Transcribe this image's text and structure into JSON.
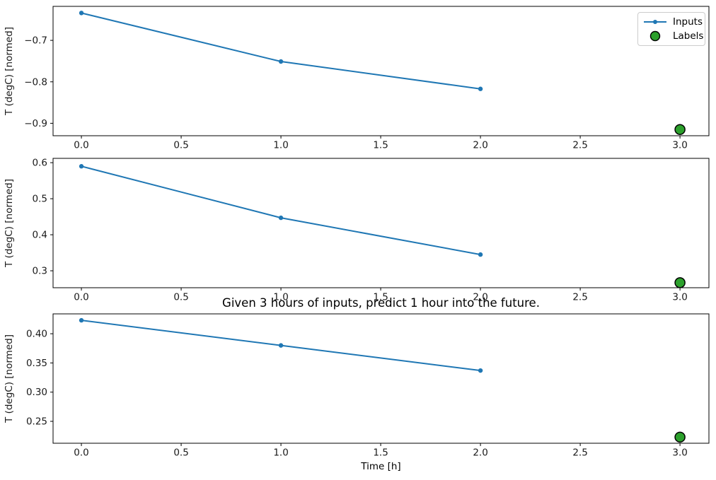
{
  "figure": {
    "title": "Given 3 hours of inputs, predict 1 hour into the future.",
    "xlabel": "Time [h]",
    "background": "#ffffff"
  },
  "colors": {
    "inputs_line": "#1f77b4",
    "labels_fill": "#2ca02c",
    "labels_edge": "#000000",
    "axes_edge": "#000000",
    "text": "#1a1a1a"
  },
  "legend": {
    "items": [
      {
        "label": "Inputs",
        "kind": "line",
        "color": "#1f77b4"
      },
      {
        "label": "Labels",
        "kind": "circle",
        "color": "#2ca02c",
        "edge": "#000000"
      }
    ]
  },
  "chart_data": [
    {
      "type": "line",
      "title": "",
      "ylabel": "T (degC) [normed]",
      "xlim": [
        -0.142,
        3.145
      ],
      "ylim": [
        -0.93,
        -0.618
      ],
      "grid": false,
      "legend_position": "upper right",
      "xticks": [
        {
          "v": 0.0,
          "label": "0.0"
        },
        {
          "v": 0.5,
          "label": "0.5"
        },
        {
          "v": 1.0,
          "label": "1.0"
        },
        {
          "v": 1.5,
          "label": "1.5"
        },
        {
          "v": 2.0,
          "label": "2.0"
        },
        {
          "v": 2.5,
          "label": "2.5"
        },
        {
          "v": 3.0,
          "label": "3.0"
        }
      ],
      "yticks": [
        {
          "v": -0.7,
          "label": "−0.7"
        },
        {
          "v": -0.8,
          "label": "−0.8"
        },
        {
          "v": -0.9,
          "label": "−0.9"
        }
      ],
      "series": [
        {
          "name": "Inputs",
          "kind": "line",
          "color": "#1f77b4",
          "x": [
            0,
            1,
            2
          ],
          "y": [
            -0.634,
            -0.751,
            -0.817
          ]
        },
        {
          "name": "Labels",
          "kind": "scatter",
          "color": "#2ca02c",
          "edge": "#000000",
          "x": [
            3
          ],
          "y": [
            -0.915
          ]
        }
      ]
    },
    {
      "type": "line",
      "title": "",
      "ylabel": "T (degC) [normed]",
      "xlim": [
        -0.142,
        3.145
      ],
      "ylim": [
        0.253,
        0.612
      ],
      "grid": false,
      "legend_position": "none",
      "xticks": [
        {
          "v": 0.0,
          "label": "0.0"
        },
        {
          "v": 0.5,
          "label": "0.5"
        },
        {
          "v": 1.0,
          "label": "1.0"
        },
        {
          "v": 1.5,
          "label": "1.5"
        },
        {
          "v": 2.0,
          "label": "2.0"
        },
        {
          "v": 2.5,
          "label": "2.5"
        },
        {
          "v": 3.0,
          "label": "3.0"
        }
      ],
      "yticks": [
        {
          "v": 0.6,
          "label": "0.6"
        },
        {
          "v": 0.5,
          "label": "0.5"
        },
        {
          "v": 0.4,
          "label": "0.4"
        },
        {
          "v": 0.3,
          "label": "0.3"
        }
      ],
      "series": [
        {
          "name": "Inputs",
          "kind": "line",
          "color": "#1f77b4",
          "x": [
            0,
            1,
            2
          ],
          "y": [
            0.59,
            0.447,
            0.345
          ]
        },
        {
          "name": "Labels",
          "kind": "scatter",
          "color": "#2ca02c",
          "edge": "#000000",
          "x": [
            3
          ],
          "y": [
            0.267
          ]
        }
      ]
    },
    {
      "type": "line",
      "title": "Given 3 hours of inputs, predict 1 hour into the future.",
      "ylabel": "T (degC) [normed]",
      "xlabel": "Time [h]",
      "xlim": [
        -0.142,
        3.145
      ],
      "ylim": [
        0.2125,
        0.434
      ],
      "grid": false,
      "legend_position": "none",
      "xticks": [
        {
          "v": 0.0,
          "label": "0.0"
        },
        {
          "v": 0.5,
          "label": "0.5"
        },
        {
          "v": 1.0,
          "label": "1.0"
        },
        {
          "v": 1.5,
          "label": "1.5"
        },
        {
          "v": 2.0,
          "label": "2.0"
        },
        {
          "v": 2.5,
          "label": "2.5"
        },
        {
          "v": 3.0,
          "label": "3.0"
        }
      ],
      "yticks": [
        {
          "v": 0.4,
          "label": "0.40"
        },
        {
          "v": 0.35,
          "label": "0.35"
        },
        {
          "v": 0.3,
          "label": "0.30"
        },
        {
          "v": 0.25,
          "label": "0.25"
        }
      ],
      "series": [
        {
          "name": "Inputs",
          "kind": "line",
          "color": "#1f77b4",
          "x": [
            0,
            1,
            2
          ],
          "y": [
            0.423,
            0.38,
            0.337
          ]
        },
        {
          "name": "Labels",
          "kind": "scatter",
          "color": "#2ca02c",
          "edge": "#000000",
          "x": [
            3
          ],
          "y": [
            0.223
          ]
        }
      ]
    }
  ]
}
